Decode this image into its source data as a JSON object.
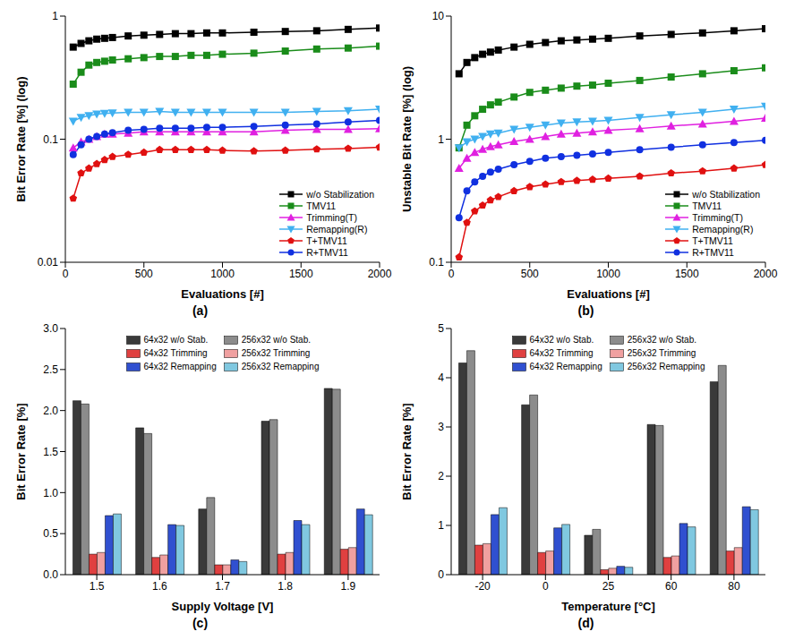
{
  "chart_data": [
    {
      "type": "line",
      "title": "(a)",
      "x_label": "Evaluations [#]",
      "y_label": "Bit Error Rate [%] (log)",
      "log": "y",
      "xlim": [
        0,
        2000
      ],
      "xticks": [
        0,
        500,
        1000,
        1500,
        2000
      ],
      "ylim": [
        0.01,
        1
      ],
      "yticks": [
        0.01,
        0.1,
        1
      ],
      "legend": "lower right",
      "x": [
        50,
        100,
        150,
        200,
        250,
        300,
        400,
        500,
        600,
        700,
        800,
        900,
        1000,
        1200,
        1400,
        1600,
        1800,
        2000
      ],
      "series": [
        {
          "name": "w/o Stabilization",
          "color": "#000000",
          "marker": "square",
          "values": [
            0.56,
            0.6,
            0.63,
            0.65,
            0.66,
            0.67,
            0.69,
            0.7,
            0.71,
            0.72,
            0.72,
            0.73,
            0.73,
            0.74,
            0.75,
            0.76,
            0.78,
            0.8
          ]
        },
        {
          "name": "TMV11",
          "color": "#1a8c1a",
          "marker": "square",
          "values": [
            0.28,
            0.35,
            0.4,
            0.42,
            0.43,
            0.44,
            0.45,
            0.46,
            0.47,
            0.47,
            0.48,
            0.48,
            0.49,
            0.5,
            0.52,
            0.54,
            0.55,
            0.57
          ]
        },
        {
          "name": "Trimming(T)",
          "color": "#e020e0",
          "marker": "triangle",
          "values": [
            0.085,
            0.095,
            0.1,
            0.105,
            0.11,
            0.11,
            0.112,
            0.115,
            0.115,
            0.115,
            0.115,
            0.115,
            0.115,
            0.115,
            0.118,
            0.12,
            0.12,
            0.122
          ]
        },
        {
          "name": "Remapping(R)",
          "color": "#40b0f0",
          "marker": "triangle-down",
          "values": [
            0.14,
            0.15,
            0.155,
            0.16,
            0.162,
            0.163,
            0.165,
            0.165,
            0.168,
            0.165,
            0.165,
            0.165,
            0.165,
            0.165,
            0.165,
            0.168,
            0.17,
            0.175
          ]
        },
        {
          "name": "T+TMV11",
          "color": "#e01010",
          "marker": "pentagon",
          "values": [
            0.033,
            0.053,
            0.058,
            0.063,
            0.068,
            0.072,
            0.075,
            0.078,
            0.082,
            0.082,
            0.082,
            0.082,
            0.081,
            0.08,
            0.081,
            0.083,
            0.084,
            0.086
          ]
        },
        {
          "name": "R+TMV11",
          "color": "#1030e0",
          "marker": "circle",
          "values": [
            0.075,
            0.09,
            0.1,
            0.105,
            0.11,
            0.113,
            0.118,
            0.12,
            0.123,
            0.123,
            0.123,
            0.125,
            0.125,
            0.127,
            0.13,
            0.133,
            0.138,
            0.142
          ]
        }
      ]
    },
    {
      "type": "line",
      "title": "(b)",
      "x_label": "Evaluations [#]",
      "y_label": "Unstable Bit Rate [%] (log)",
      "log": "y",
      "xlim": [
        0,
        2000
      ],
      "xticks": [
        0,
        500,
        1000,
        1500,
        2000
      ],
      "ylim": [
        0.1,
        10
      ],
      "yticks": [
        0.1,
        1,
        10
      ],
      "legend": "lower right",
      "x": [
        50,
        100,
        150,
        200,
        250,
        300,
        400,
        500,
        600,
        700,
        800,
        900,
        1000,
        1200,
        1400,
        1600,
        1800,
        2000
      ],
      "series": [
        {
          "name": "w/o Stabilization",
          "color": "#000000",
          "marker": "square",
          "values": [
            3.4,
            4.2,
            4.6,
            4.9,
            5.1,
            5.3,
            5.6,
            5.9,
            6.1,
            6.3,
            6.4,
            6.5,
            6.6,
            6.9,
            7.1,
            7.3,
            7.6,
            7.9
          ]
        },
        {
          "name": "TMV11",
          "color": "#1a8c1a",
          "marker": "square",
          "values": [
            0.85,
            1.3,
            1.55,
            1.75,
            1.9,
            2.0,
            2.2,
            2.4,
            2.5,
            2.6,
            2.7,
            2.75,
            2.85,
            3.0,
            3.2,
            3.4,
            3.6,
            3.8
          ]
        },
        {
          "name": "Trimming(T)",
          "color": "#e020e0",
          "marker": "triangle",
          "values": [
            0.58,
            0.7,
            0.78,
            0.83,
            0.87,
            0.9,
            0.96,
            1.0,
            1.05,
            1.1,
            1.12,
            1.15,
            1.18,
            1.22,
            1.28,
            1.33,
            1.4,
            1.48
          ]
        },
        {
          "name": "Remapping(R)",
          "color": "#40b0f0",
          "marker": "triangle-down",
          "values": [
            0.85,
            0.95,
            1.0,
            1.05,
            1.1,
            1.12,
            1.2,
            1.25,
            1.3,
            1.35,
            1.38,
            1.4,
            1.42,
            1.5,
            1.58,
            1.65,
            1.75,
            1.85
          ]
        },
        {
          "name": "T+TMV11",
          "color": "#e01010",
          "marker": "pentagon",
          "values": [
            0.11,
            0.21,
            0.26,
            0.29,
            0.32,
            0.34,
            0.38,
            0.41,
            0.43,
            0.45,
            0.46,
            0.47,
            0.48,
            0.5,
            0.53,
            0.55,
            0.58,
            0.62
          ]
        },
        {
          "name": "R+TMV11",
          "color": "#1030e0",
          "marker": "circle",
          "values": [
            0.23,
            0.38,
            0.45,
            0.5,
            0.54,
            0.57,
            0.62,
            0.66,
            0.7,
            0.72,
            0.74,
            0.76,
            0.78,
            0.82,
            0.86,
            0.9,
            0.94,
            0.98
          ]
        }
      ]
    },
    {
      "type": "bar",
      "title": "(c)",
      "x_label": "Supply Voltage [V]",
      "y_label": "Bit Error Rate [%]",
      "categories": [
        "1.5",
        "1.6",
        "1.7",
        "1.8",
        "1.9"
      ],
      "ylim": [
        0,
        3
      ],
      "yticks": [
        {
          "value": 0,
          "label": "0.0"
        },
        0.5,
        {
          "value": 1,
          "label": "1.0"
        },
        1.5,
        {
          "value": 2,
          "label": "2.0"
        },
        2.5,
        {
          "value": 3,
          "label": "3.0"
        }
      ],
      "legend": "upper center",
      "series": [
        {
          "name": "64x32 w/o Stab.",
          "color": "#3a3a3a",
          "values": [
            2.12,
            1.79,
            0.8,
            1.87,
            2.27
          ]
        },
        {
          "name": "256x32 w/o Stab.",
          "color": "#8c8c8c",
          "values": [
            2.08,
            1.72,
            0.94,
            1.89,
            2.26
          ]
        },
        {
          "name": "64x32 Trimming",
          "color": "#e04040",
          "values": [
            0.25,
            0.21,
            0.12,
            0.25,
            0.31
          ]
        },
        {
          "name": "256x32 Trimming",
          "color": "#f0a0a0",
          "values": [
            0.27,
            0.24,
            0.12,
            0.27,
            0.33
          ]
        },
        {
          "name": "64x32 Remapping",
          "color": "#3050d0",
          "values": [
            0.72,
            0.61,
            0.18,
            0.66,
            0.8
          ]
        },
        {
          "name": "256x32 Remapping",
          "color": "#80c8e0",
          "values": [
            0.74,
            0.6,
            0.16,
            0.61,
            0.73
          ]
        }
      ]
    },
    {
      "type": "bar",
      "title": "(d)",
      "x_label": "Temperature [°C]",
      "y_label": "Bit Error Rate [%]",
      "categories": [
        "-20",
        "0",
        "25",
        "60",
        "80"
      ],
      "ylim": [
        0,
        5
      ],
      "yticks": [
        0,
        1,
        2,
        3,
        4,
        5
      ],
      "legend": "upper center",
      "series": [
        {
          "name": "64x32 w/o Stab.",
          "color": "#3a3a3a",
          "values": [
            4.3,
            3.45,
            0.8,
            3.05,
            3.92
          ]
        },
        {
          "name": "256x32 w/o Stab.",
          "color": "#8c8c8c",
          "values": [
            4.55,
            3.65,
            0.92,
            3.03,
            4.25
          ]
        },
        {
          "name": "64x32 Trimming",
          "color": "#e04040",
          "values": [
            0.6,
            0.45,
            0.1,
            0.35,
            0.48
          ]
        },
        {
          "name": "256x32 Trimming",
          "color": "#f0a0a0",
          "values": [
            0.63,
            0.48,
            0.13,
            0.38,
            0.55
          ]
        },
        {
          "name": "64x32 Remapping",
          "color": "#3050d0",
          "values": [
            1.22,
            0.95,
            0.17,
            1.04,
            1.38
          ]
        },
        {
          "name": "256x32 Remapping",
          "color": "#80c8e0",
          "values": [
            1.36,
            1.02,
            0.15,
            0.97,
            1.32
          ]
        }
      ]
    }
  ]
}
